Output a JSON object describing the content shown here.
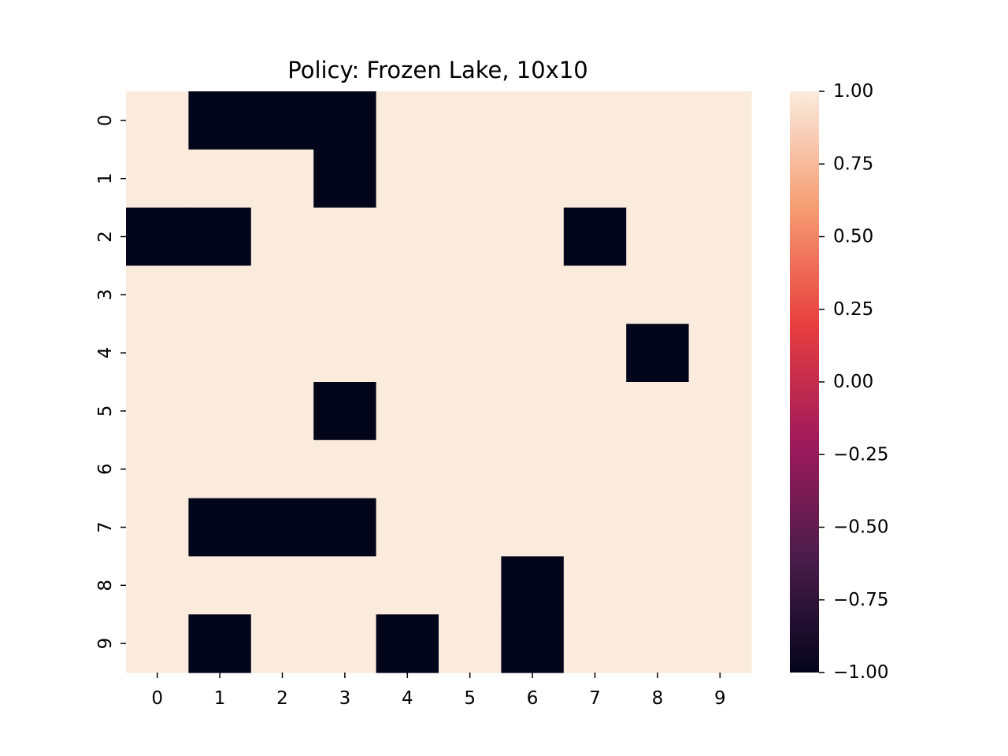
{
  "chart_data": {
    "type": "heatmap",
    "title": "Policy: Frozen Lake, 10x10",
    "xlabel": "",
    "ylabel": "",
    "x_tick_labels": [
      "0",
      "1",
      "2",
      "3",
      "4",
      "5",
      "6",
      "7",
      "8",
      "9"
    ],
    "y_tick_labels": [
      "0",
      "1",
      "2",
      "3",
      "4",
      "5",
      "6",
      "7",
      "8",
      "9"
    ],
    "values": [
      [
        1,
        -1,
        -1,
        -1,
        1,
        1,
        1,
        1,
        1,
        1
      ],
      [
        1,
        1,
        1,
        -1,
        1,
        1,
        1,
        1,
        1,
        1
      ],
      [
        -1,
        -1,
        1,
        1,
        1,
        1,
        1,
        -1,
        1,
        1
      ],
      [
        1,
        1,
        1,
        1,
        1,
        1,
        1,
        1,
        1,
        1
      ],
      [
        1,
        1,
        1,
        1,
        1,
        1,
        1,
        1,
        -1,
        1
      ],
      [
        1,
        1,
        1,
        -1,
        1,
        1,
        1,
        1,
        1,
        1
      ],
      [
        1,
        1,
        1,
        1,
        1,
        1,
        1,
        1,
        1,
        1
      ],
      [
        1,
        -1,
        -1,
        -1,
        1,
        1,
        1,
        1,
        1,
        1
      ],
      [
        1,
        1,
        1,
        1,
        1,
        1,
        -1,
        1,
        1,
        1
      ],
      [
        1,
        -1,
        1,
        1,
        -1,
        1,
        -1,
        1,
        1,
        1
      ]
    ],
    "vmin": -1.0,
    "vmax": 1.0,
    "colorbar": {
      "ticks": [
        1.0,
        0.75,
        0.5,
        0.25,
        0.0,
        -0.25,
        -0.5,
        -0.75,
        -1.0
      ],
      "tick_labels": [
        "1.00",
        "0.75",
        "0.50",
        "0.25",
        "0.00",
        "−0.25",
        "−0.50",
        "−0.75",
        "−1.00"
      ]
    },
    "colormap": [
      "#03051a",
      "#4c1d4b",
      "#a11a5b",
      "#e83f3f",
      "#f69c73",
      "#faebdd"
    ],
    "grid": false
  }
}
